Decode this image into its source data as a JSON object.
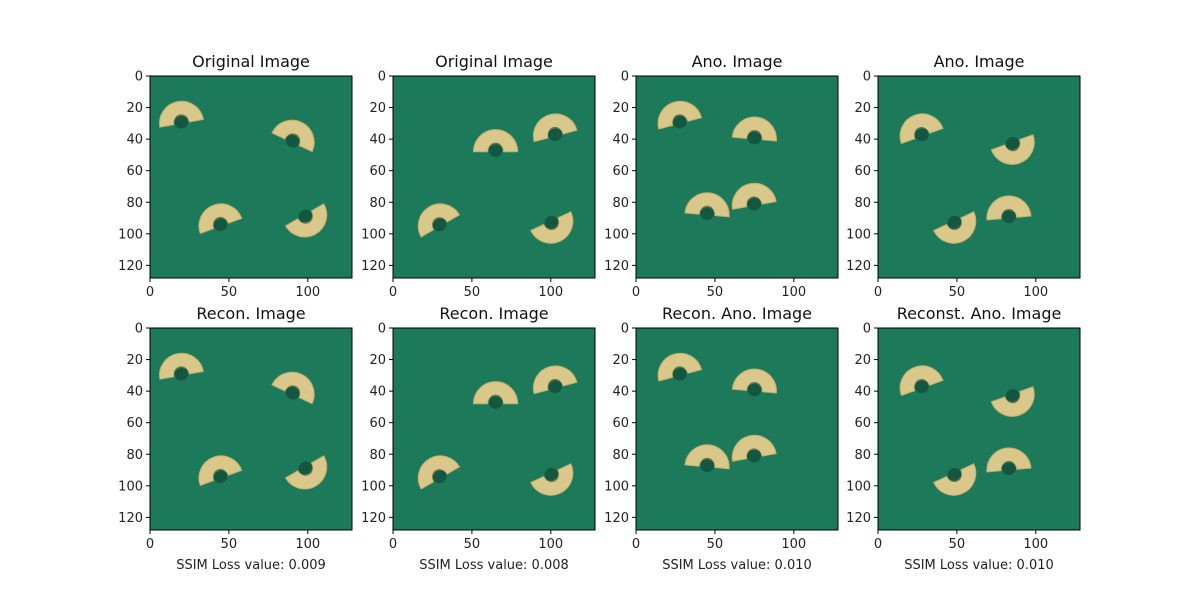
{
  "figure": {
    "rows": [
      [
        "Original Image",
        "Original Image",
        "Ano. Image",
        "Ano. Image"
      ],
      [
        "Recon. Image",
        "Recon. Image",
        "Recon. Ano. Image",
        "Reconst. Ano. Image"
      ]
    ],
    "xlabels": [
      "SSIM Loss value: 0.009",
      "SSIM Loss value: 0.008",
      "SSIM Loss value: 0.010",
      "SSIM Loss value: 0.010"
    ]
  },
  "chart_data": {
    "type": "image-grid",
    "x_ticks": [
      0,
      50,
      100
    ],
    "y_ticks": [
      0,
      20,
      40,
      60,
      80,
      100,
      120
    ],
    "xlim": [
      0,
      128
    ],
    "ylim": [
      128,
      0
    ],
    "background_color": "#1c7a5a",
    "pasta_color": "#d9c88a",
    "panels": [
      {
        "title": "Original Image",
        "ssim_loss": null
      },
      {
        "title": "Original Image",
        "ssim_loss": null
      },
      {
        "title": "Ano. Image",
        "ssim_loss": null
      },
      {
        "title": "Ano. Image",
        "ssim_loss": null
      },
      {
        "title": "Recon. Image",
        "ssim_loss": 0.009
      },
      {
        "title": "Recon. Image",
        "ssim_loss": 0.008
      },
      {
        "title": "Recon. Ano. Image",
        "ssim_loss": 0.01
      },
      {
        "title": "Reconst. Ano. Image",
        "ssim_loss": 0.01
      }
    ]
  }
}
